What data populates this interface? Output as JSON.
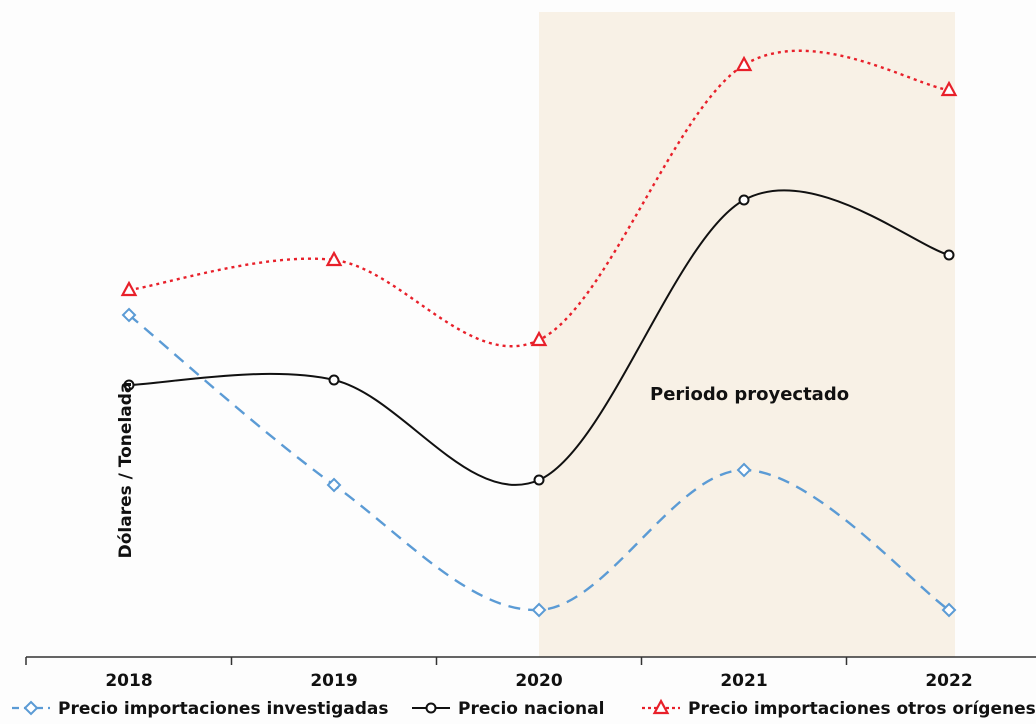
{
  "chart_data": {
    "type": "line",
    "ylabel": "Dólares / Tonelada",
    "xlabel": "",
    "categories": [
      "2018",
      "2019",
      "2020",
      "2021",
      "2022"
    ],
    "annotation": "Periodo proyectado",
    "projected_from": "2020",
    "projected_to": "2022",
    "y_axis_values_shown": false,
    "grid": false,
    "legend_position": "bottom",
    "series": [
      {
        "name": "Precio importaciones investigadas",
        "values": [
          100,
          66,
          41,
          69,
          41
        ],
        "color": "#5b9bd5",
        "line_style": "dashed",
        "marker": "diamond"
      },
      {
        "name": "Precio nacional",
        "values": [
          86,
          87,
          67,
          123,
          112
        ],
        "color": "#111111",
        "line_style": "solid",
        "marker": "circle"
      },
      {
        "name": "Precio importaciones otros orígenes",
        "values": [
          105,
          111,
          95,
          150,
          145
        ],
        "color": "#e8202a",
        "line_style": "dotted",
        "marker": "triangle"
      }
    ]
  }
}
